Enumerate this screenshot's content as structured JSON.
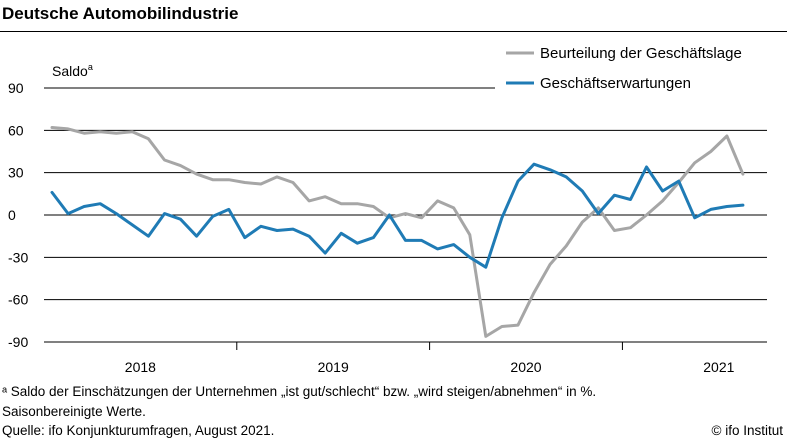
{
  "title": "Deutsche Automobilindustrie",
  "footnotes": {
    "note": "ᵃ Saldo der Einschätzungen der Unternehmen „ist gut/schlecht“ bzw. „wird steigen/abnehmen“ in %.",
    "seasonal": "Saisonbereinigte Werte.",
    "source": "Quelle: ifo Konjunkturumfragen, August 2021.",
    "copyright": "© ifo Institut"
  },
  "colors": {
    "lage": "#a6a6a6",
    "erwartungen": "#1f7bb5",
    "grid": "#000000"
  },
  "chart_data": {
    "type": "line",
    "ylabel": "Saldo",
    "ylabel_sup": "a",
    "ylim": [
      -90,
      90
    ],
    "yticks": [
      90,
      60,
      30,
      0,
      -30,
      -60,
      -90
    ],
    "ytick_labels": [
      "90",
      "60",
      "30",
      "0",
      "-30",
      "-60",
      "-90"
    ],
    "xlim": [
      0,
      44
    ],
    "year_labels": [
      "2018",
      "2019",
      "2020",
      "2021"
    ],
    "year_centers": [
      5.5,
      17.5,
      29.5,
      41.5
    ],
    "year_boundaries": [
      12,
      24,
      36
    ],
    "legend_position": "top-right",
    "series": [
      {
        "name": "Beurteilung der Geschäftslage",
        "color": "#a6a6a6",
        "x": [
          0,
          1,
          2,
          3,
          4,
          5,
          6,
          7,
          8,
          9,
          10,
          11,
          12,
          13,
          14,
          15,
          16,
          17,
          18,
          19,
          20,
          21,
          22,
          23,
          24,
          25,
          26,
          27,
          28,
          29,
          30,
          31,
          32,
          33,
          34,
          35,
          36,
          37,
          38,
          39,
          40,
          41,
          42,
          43
        ],
        "values": [
          62,
          61,
          58,
          59,
          58,
          59,
          54,
          39,
          35,
          29,
          25,
          25,
          23,
          22,
          27,
          23,
          10,
          13,
          8,
          8,
          6,
          -2,
          1,
          -2,
          10,
          5,
          -14,
          -86,
          -79,
          -78,
          -55,
          -35,
          -22,
          -5,
          5,
          -11,
          -9,
          0,
          10,
          23,
          37,
          45,
          56,
          29
        ]
      },
      {
        "name": "Geschäftserwartungen",
        "color": "#1f7bb5",
        "x": [
          0,
          1,
          2,
          3,
          4,
          5,
          6,
          7,
          8,
          9,
          10,
          11,
          12,
          13,
          14,
          15,
          16,
          17,
          18,
          19,
          20,
          21,
          22,
          23,
          24,
          25,
          26,
          27,
          28,
          29,
          30,
          31,
          32,
          33,
          34,
          35,
          36,
          37,
          38,
          39,
          40,
          41,
          42,
          43
        ],
        "values": [
          16,
          1,
          6,
          8,
          1,
          -7,
          -15,
          1,
          -3,
          -15,
          -1,
          4,
          -16,
          -8,
          -11,
          -10,
          -15,
          -27,
          -13,
          -20,
          -16,
          0,
          -18,
          -18,
          -24,
          -21,
          -30,
          -37,
          -2,
          24,
          36,
          32,
          27,
          17,
          1,
          14,
          11,
          34,
          17,
          24,
          -2,
          4,
          6,
          7
        ]
      }
    ]
  }
}
